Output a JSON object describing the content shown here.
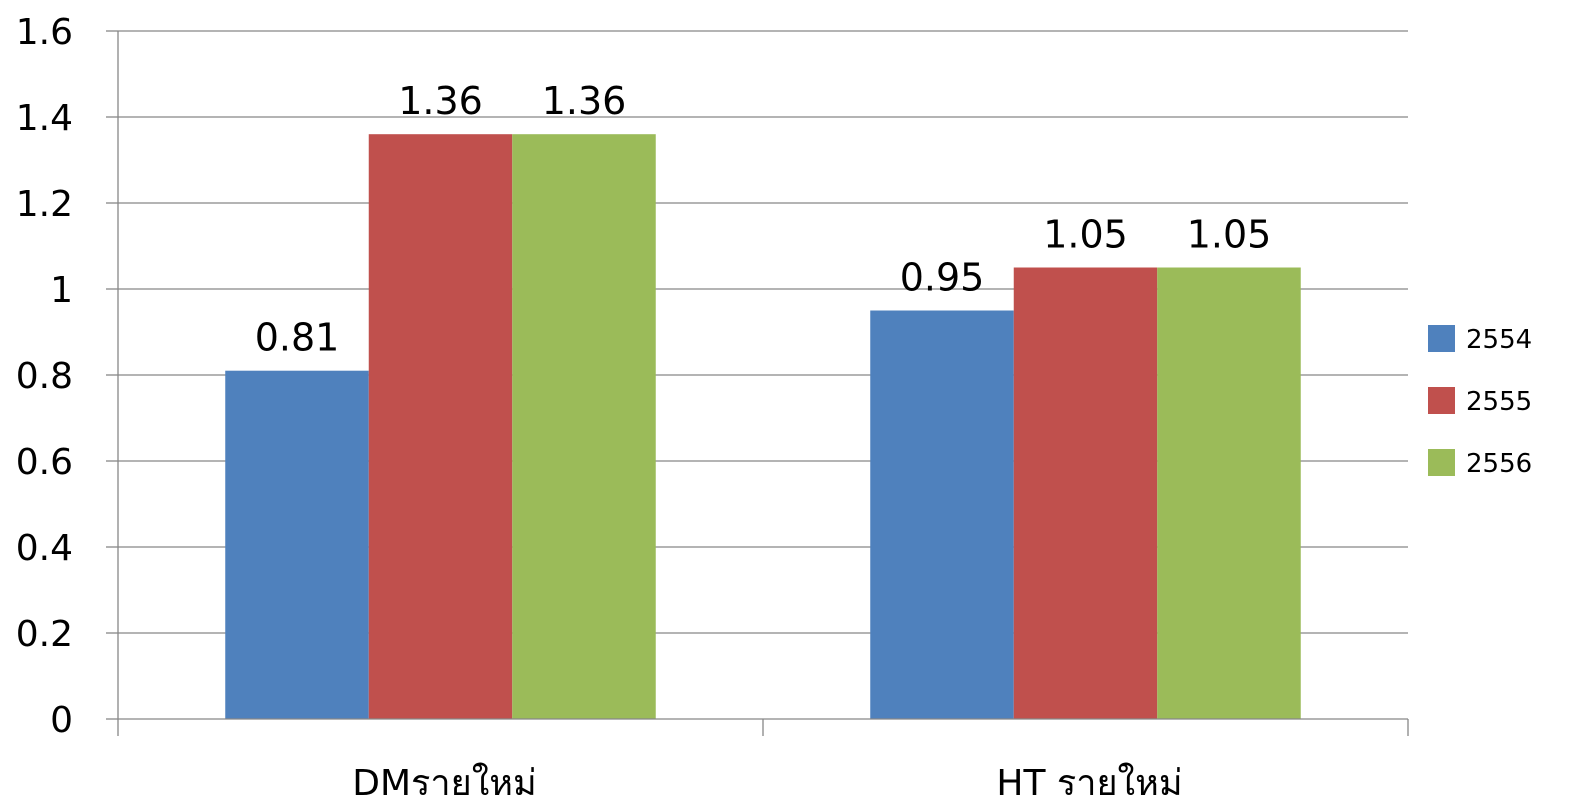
{
  "chart_data": {
    "type": "bar",
    "categories": [
      "DMรายใหม่",
      "HT รายใหม่"
    ],
    "series": [
      {
        "name": "2554",
        "values": [
          0.81,
          0.95
        ],
        "color": "#4F81BD"
      },
      {
        "name": "2555",
        "values": [
          1.36,
          1.05
        ],
        "color": "#C0504D"
      },
      {
        "name": "2556",
        "values": [
          1.36,
          1.05
        ],
        "color": "#9BBB59"
      }
    ],
    "data_labels": [
      [
        "0.81",
        "0.95"
      ],
      [
        "1.36",
        "1.05"
      ],
      [
        "1.36",
        "1.05"
      ]
    ],
    "yticks": [
      "0",
      "0.2",
      "0.4",
      "0.6",
      "0.8",
      "1",
      "1.2",
      "1.4",
      "1.6"
    ],
    "ylim": [
      0,
      1.6
    ],
    "title": "",
    "xlabel": "",
    "ylabel": "",
    "grid": true,
    "legend": "right"
  }
}
